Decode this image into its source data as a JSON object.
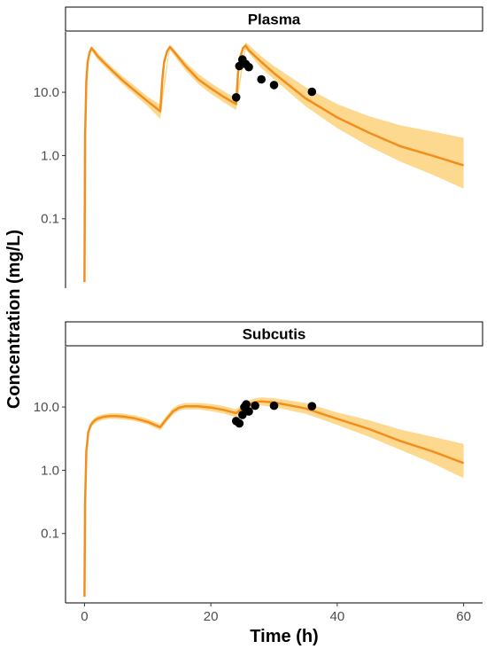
{
  "chart_data": {
    "type": "line",
    "ylabel": "Concentration (mg/L)",
    "xlabel": "Time (h)",
    "y_scale": "log",
    "ylim": [
      0.008,
      90
    ],
    "xlim": [
      -3,
      63
    ],
    "x_ticks": [
      0,
      20,
      40,
      60
    ],
    "y_ticks": [
      0.1,
      1.0,
      10.0
    ],
    "y_tick_labels": [
      "0.1",
      "1.0",
      "10.0"
    ],
    "grid": false,
    "line_color": "#f28e1c",
    "band_color": "#fdd88f",
    "point_color": "#000000",
    "panels": [
      {
        "title": "Plasma",
        "line": {
          "x": [
            0,
            0.1,
            0.3,
            0.5,
            0.8,
            1.1,
            1.5,
            2,
            3,
            4,
            6,
            8,
            10,
            12,
            12.3,
            12.6,
            13.1,
            13.5,
            14,
            16,
            18,
            20,
            22,
            24,
            24.3,
            24.6,
            25.1,
            25.5,
            26,
            28,
            30,
            35,
            40,
            45,
            50,
            55,
            60
          ],
          "y": [
            0.01,
            2,
            15,
            30,
            42,
            50,
            45,
            38,
            30,
            24,
            15.5,
            10.5,
            7.2,
            5.0,
            15,
            30,
            45,
            52,
            46,
            26,
            16,
            11.5,
            8.5,
            6.5,
            20,
            35,
            50,
            55,
            46,
            30,
            20,
            8,
            4,
            2.3,
            1.4,
            1.0,
            0.7
          ]
        },
        "band": {
          "x": [
            1.1,
            2,
            4,
            6,
            8,
            10,
            12,
            13.5,
            16,
            18,
            20,
            22,
            24,
            25.5,
            28,
            30,
            35,
            40,
            45,
            50,
            55,
            60
          ],
          "lower": [
            46,
            34,
            21,
            13.5,
            9,
            6,
            3.8,
            47,
            22,
            13.5,
            9.5,
            7,
            5.2,
            48,
            24,
            16,
            6,
            2.7,
            1.4,
            0.8,
            0.5,
            0.3
          ],
          "upper": [
            54,
            43,
            27,
            18,
            12.5,
            8.5,
            6.4,
            57,
            30,
            19.5,
            14,
            10.5,
            8.0,
            62,
            37,
            26,
            12,
            6.5,
            4.2,
            3,
            2.4,
            1.9
          ]
        },
        "points": {
          "x": [
            24,
            24.5,
            25,
            25.5,
            26,
            28,
            30,
            36
          ],
          "y": [
            8.3,
            26,
            33,
            28,
            25,
            16,
            13,
            10.2
          ]
        }
      },
      {
        "title": "Subcutis",
        "line": {
          "x": [
            0,
            0.1,
            0.3,
            0.6,
            1,
            1.5,
            2,
            3,
            4,
            5,
            6,
            8,
            10,
            12,
            13,
            14,
            15,
            16,
            18,
            20,
            22,
            24,
            25,
            26,
            27,
            28,
            30,
            35,
            40,
            45,
            50,
            55,
            60
          ],
          "y": [
            0.01,
            0.3,
            2,
            4,
            5.2,
            6,
            6.5,
            7,
            7.2,
            7.2,
            7.1,
            6.6,
            5.8,
            4.8,
            6.5,
            8.5,
            9.8,
            10.3,
            10.3,
            9.8,
            9,
            8.0,
            9.5,
            11,
            12,
            12.3,
            11.8,
            9.5,
            6.5,
            4.5,
            2.9,
            2,
            1.3
          ]
        },
        "band": {
          "x": [
            1,
            1.5,
            2,
            3,
            4,
            5,
            6,
            8,
            10,
            12,
            13,
            14,
            15,
            16,
            18,
            20,
            22,
            24,
            25,
            26,
            27,
            28,
            30,
            35,
            40,
            45,
            50,
            55,
            60
          ],
          "lower": [
            4.6,
            5.4,
            5.8,
            6.3,
            6.5,
            6.5,
            6.4,
            6.0,
            5.3,
            4.3,
            5.8,
            7.6,
            8.8,
            9.2,
            9.2,
            8.6,
            7.9,
            6.9,
            8.3,
            9.6,
            10.4,
            10.6,
            10.0,
            7.8,
            5.2,
            3.4,
            2.1,
            1.3,
            0.75
          ],
          "upper": [
            5.8,
            6.6,
            7.2,
            7.7,
            8.0,
            8.0,
            7.9,
            7.4,
            6.5,
            5.4,
            7.3,
            9.6,
            11.0,
            11.6,
            11.6,
            11.2,
            10.4,
            9.2,
            10.9,
            12.6,
            13.8,
            14.2,
            13.8,
            11.6,
            8.2,
            6.2,
            4.4,
            3.4,
            2.6
          ]
        },
        "points": {
          "x": [
            24,
            24.5,
            25,
            25.3,
            25.6,
            26,
            27,
            30,
            36
          ],
          "y": [
            6.0,
            5.5,
            7.5,
            10.0,
            11.0,
            8.5,
            10.5,
            10.5,
            10.3
          ]
        }
      }
    ]
  }
}
